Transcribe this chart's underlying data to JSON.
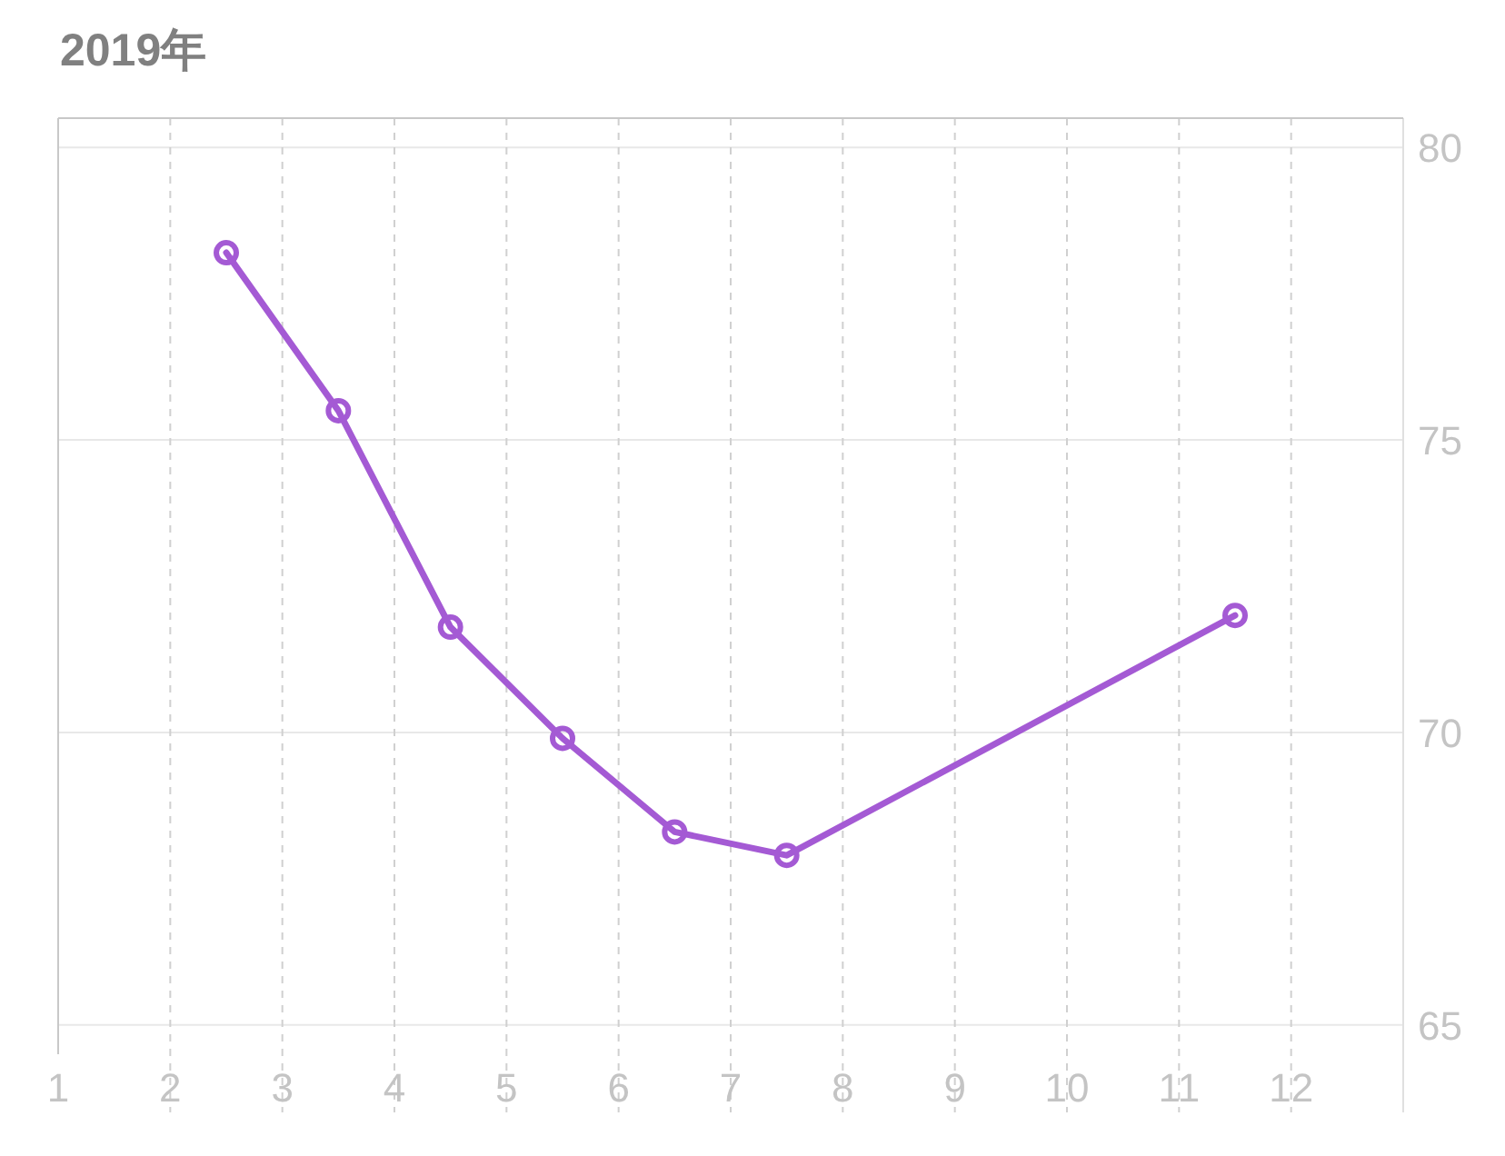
{
  "chart_data": {
    "type": "line",
    "title": "2019年",
    "x": [
      2.5,
      3.5,
      4.5,
      5.5,
      6.5,
      7.5,
      11.5
    ],
    "series": [
      {
        "color": "#a45ad4",
        "values": [
          78.2,
          75.5,
          71.8,
          69.9,
          68.3,
          67.9,
          72.0
        ]
      }
    ],
    "xlim": [
      1,
      13
    ],
    "xticks": [
      1,
      2,
      3,
      4,
      5,
      6,
      7,
      8,
      9,
      10,
      11,
      12,
      {
        "value": 13,
        "label": null
      }
    ],
    "ylim": [
      64.5,
      80.5
    ],
    "yticks": [
      65,
      70,
      75,
      80
    ],
    "grid": true,
    "marker": "circle",
    "line_style": "solid"
  }
}
